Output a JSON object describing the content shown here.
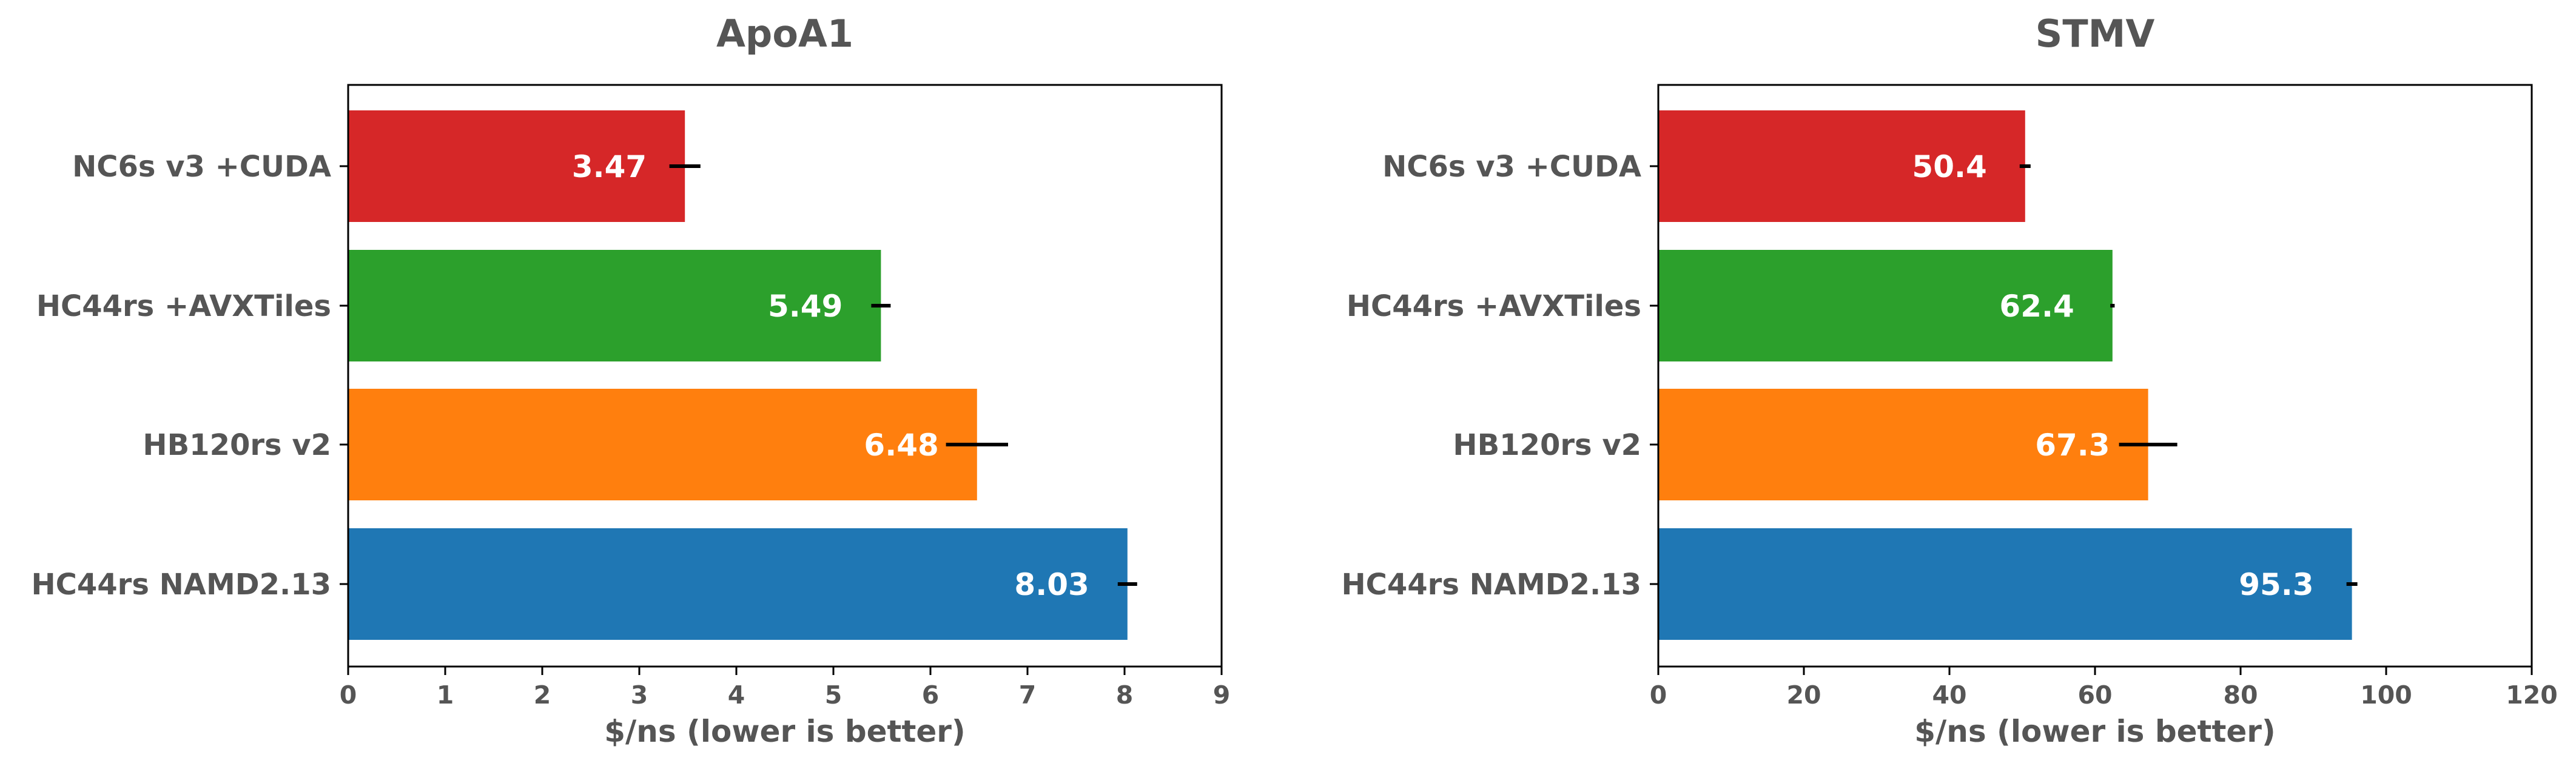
{
  "chart_data": [
    {
      "type": "bar",
      "orientation": "horizontal",
      "title": "ApoA1",
      "xlabel": "$/ns (lower is better)",
      "ylabel": "",
      "xlim": [
        0,
        9
      ],
      "xticks": [
        "0",
        "1",
        "2",
        "3",
        "4",
        "5",
        "6",
        "7",
        "8",
        "9"
      ],
      "grid": false,
      "categories": [
        "NC6s v3 +CUDA",
        "HC44rs +AVXTiles",
        "HB120rs v2",
        "HC44rs NAMD2.13"
      ],
      "values": [
        3.47,
        5.49,
        6.48,
        8.03
      ],
      "value_labels": [
        "3.47",
        "5.49",
        "6.48",
        "8.03"
      ],
      "errors": [
        0.16,
        0.1,
        0.32,
        0.1
      ],
      "colors": [
        "#d62728",
        "#2ca02c",
        "#ff7f0e",
        "#1f77b4"
      ]
    },
    {
      "type": "bar",
      "orientation": "horizontal",
      "title": "STMV",
      "xlabel": "$/ns (lower is better)",
      "ylabel": "",
      "xlim": [
        0,
        120
      ],
      "xticks": [
        "0",
        "20",
        "40",
        "60",
        "80",
        "100",
        "120"
      ],
      "grid": false,
      "categories": [
        "NC6s v3 +CUDA",
        "HC44rs +AVXTiles",
        "HB120rs v2",
        "HC44rs NAMD2.13"
      ],
      "values": [
        50.4,
        62.4,
        67.3,
        95.3
      ],
      "value_labels": [
        "50.4",
        "62.4",
        "67.3",
        "95.3"
      ],
      "errors": [
        0.75,
        0.3,
        4.0,
        0.75
      ],
      "colors": [
        "#d62728",
        "#2ca02c",
        "#ff7f0e",
        "#1f77b4"
      ]
    }
  ]
}
